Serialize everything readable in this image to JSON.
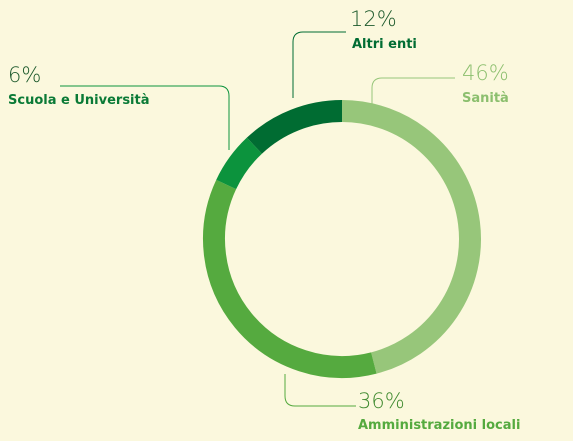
{
  "chart_data": {
    "type": "donut",
    "categories": [
      "Sanità",
      "Amministrazioni locali",
      "Scuola e Università",
      "Altri enti"
    ],
    "values": [
      46,
      36,
      6,
      12
    ],
    "value_labels": [
      "46%",
      "36%",
      "6%",
      "12%"
    ],
    "colors": [
      "#97c67a",
      "#55aa3f",
      "#0c933d",
      "#006c32"
    ]
  }
}
